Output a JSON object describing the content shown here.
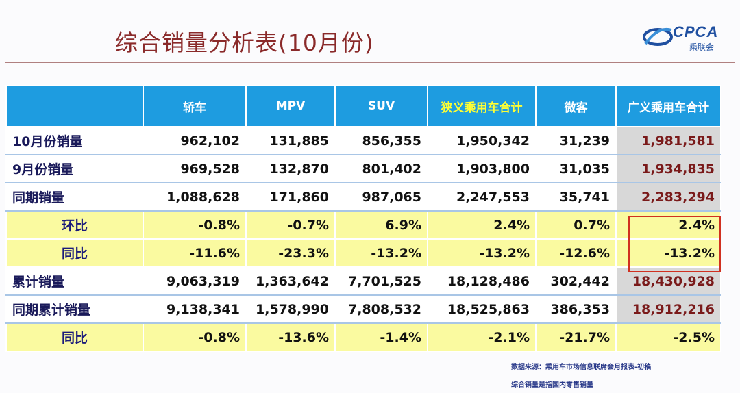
{
  "header": {
    "title": "综合销量分析表(10月份)"
  },
  "logo": {
    "brand": "CPCA",
    "subtitle": "乘联会"
  },
  "table": {
    "columns": [
      "",
      "轿车",
      "MPV",
      "SUV",
      "狭义乘用车合计",
      "微客",
      "广义乘用车合计"
    ],
    "rows": [
      [
        "10月份销量",
        "962,102",
        "131,885",
        "856,355",
        "1,950,342",
        "31,239",
        "1,981,581"
      ],
      [
        "9月份销量",
        "969,528",
        "132,870",
        "801,402",
        "1,903,800",
        "31,035",
        "1,934,835"
      ],
      [
        "同期销量",
        "1,088,628",
        "171,860",
        "987,065",
        "2,247,553",
        "35,741",
        "2,283,294"
      ],
      [
        "环比",
        "-0.8%",
        "-0.7%",
        "6.9%",
        "2.4%",
        "0.7%",
        "2.4%"
      ],
      [
        "同比",
        "-11.6%",
        "-23.3%",
        "-13.2%",
        "-13.2%",
        "-12.6%",
        "-13.2%"
      ],
      [
        "累计销量",
        "9,063,319",
        "1,363,642",
        "7,701,525",
        "18,128,486",
        "302,442",
        "18,430,928"
      ],
      [
        "同期累计销量",
        "9,138,341",
        "1,578,990",
        "7,808,532",
        "18,525,863",
        "386,353",
        "18,912,216"
      ],
      [
        "同比",
        "-0.8%",
        "-13.6%",
        "-1.4%",
        "-2.1%",
        "-21.7%",
        "-2.5%"
      ]
    ]
  },
  "notes": {
    "source": "数据来源：乘用车市场信息联席会月报表-初稿",
    "definition": "综合销量是指国内零售销量"
  },
  "colors": {
    "header_bg": "#1e9ce0",
    "highlight_header": "#ffff33",
    "yellow_row": "#fafaa0",
    "total_col": "#d8d8d8",
    "title": "#8a2a2a",
    "red_box": "#d03020"
  }
}
